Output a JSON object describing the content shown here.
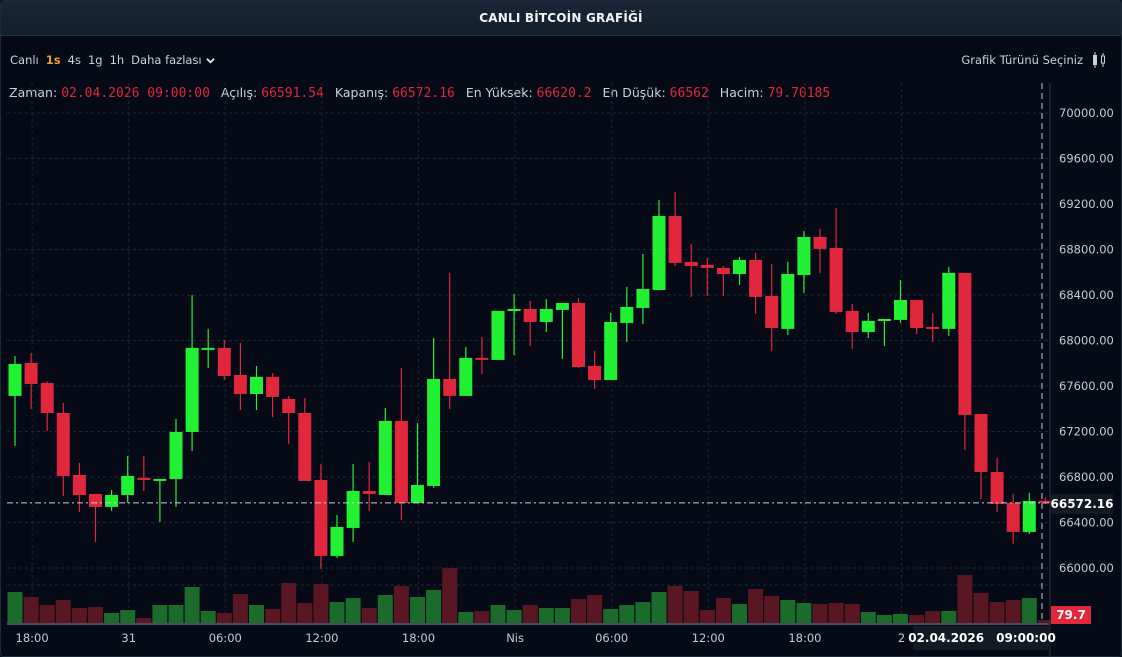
{
  "window": {
    "title": "CANLI BİTCOİN GRAFİĞİ"
  },
  "toolbar": {
    "live_label": "Canlı",
    "timeframes": [
      {
        "label": "1s",
        "active": true
      },
      {
        "label": "4s",
        "active": false
      },
      {
        "label": "1g",
        "active": false
      },
      {
        "label": "1h",
        "active": false
      }
    ],
    "more_label": "Daha fazlası",
    "chart_type_label": "Grafik Türünü Seçiniz",
    "chart_type_icon": "candlestick-icon"
  },
  "legend": {
    "time_label": "Zaman:",
    "time_value": "02.04.2026 09:00:00",
    "open_label": "Açılış:",
    "open_value": "66591.54",
    "close_label": "Kapanış:",
    "close_value": "66572.16",
    "high_label": "En Yüksek:",
    "high_value": "66620.2",
    "low_label": "En Düşük:",
    "low_value": "66562",
    "volume_label": "Hacim:",
    "volume_value": "79.70185"
  },
  "crosshair": {
    "price_tag": "66572.16",
    "volume_tag": "79.7",
    "date_tag": "02.04.2026",
    "time_tag": "09:00:00"
  },
  "colors": {
    "up": "#22f032",
    "down": "#e0273b",
    "vol_up": "#1b6b2a",
    "vol_down": "#5a1723",
    "background": "#050a16",
    "grid": "#1d2735",
    "accent": "#f0a020"
  },
  "chart_data": {
    "type": "candlestick",
    "title": "CANLI BİTCOİN GRAFİĞİ",
    "xlabel": "",
    "ylabel": "",
    "ylim": [
      65800,
      70200
    ],
    "y_ticks": [
      "70000.00",
      "69600.00",
      "69200.00",
      "68800.00",
      "68400.00",
      "68000.00",
      "67600.00",
      "67200.00",
      "66800.00",
      "66400.00",
      "66000.00"
    ],
    "x_ticks": [
      {
        "label": "18:00",
        "index": 1
      },
      {
        "label": "31",
        "index": 7
      },
      {
        "label": "06:00",
        "index": 13
      },
      {
        "label": "12:00",
        "index": 19
      },
      {
        "label": "18:00",
        "index": 25
      },
      {
        "label": "Nis",
        "index": 31
      },
      {
        "label": "06:00",
        "index": 37
      },
      {
        "label": "12:00",
        "index": 43
      },
      {
        "label": "18:00",
        "index": 49
      },
      {
        "label": "2",
        "index": 55
      }
    ],
    "grid": true,
    "interval": "1h",
    "candles": [
      [
        67513,
        67864,
        67073,
        67794,
        31
      ],
      [
        67803,
        67891,
        67398,
        67618,
        26
      ],
      [
        67627,
        67640,
        67205,
        67363,
        18
      ],
      [
        67363,
        67451,
        66633,
        66809,
        23
      ],
      [
        66818,
        66924,
        66493,
        66642,
        15
      ],
      [
        66651,
        66651,
        66229,
        66537,
        16
      ],
      [
        66537,
        66686,
        66502,
        66642,
        10
      ],
      [
        66642,
        66985,
        66572,
        66809,
        13
      ],
      [
        66792,
        66985,
        66677,
        66774,
        5
      ],
      [
        66774,
        66783,
        66405,
        66783,
        18
      ],
      [
        66783,
        67310,
        66537,
        67196,
        18
      ],
      [
        67196,
        68400,
        67029,
        67935,
        36
      ],
      [
        67926,
        68102,
        67759,
        67935,
        12
      ],
      [
        67935,
        68005,
        67653,
        67688,
        10
      ],
      [
        67697,
        67978,
        67389,
        67530,
        29
      ],
      [
        67530,
        67776,
        67389,
        67680,
        18
      ],
      [
        67680,
        67715,
        67328,
        67504,
        14
      ],
      [
        67486,
        67513,
        67091,
        67363,
        40
      ],
      [
        67363,
        67495,
        66765,
        66765,
        20
      ],
      [
        66774,
        66915,
        65992,
        66106,
        39
      ],
      [
        66106,
        66466,
        66088,
        66361,
        21
      ],
      [
        66352,
        66915,
        66229,
        66677,
        25
      ],
      [
        66677,
        66932,
        66502,
        66651,
        15
      ],
      [
        66642,
        67407,
        66642,
        67293,
        28
      ],
      [
        67293,
        67759,
        66422,
        66572,
        37
      ],
      [
        66572,
        67275,
        66572,
        66730,
        26
      ],
      [
        66721,
        68022,
        66704,
        67662,
        33
      ],
      [
        67662,
        68594,
        67398,
        67513,
        55
      ],
      [
        67513,
        67943,
        67513,
        67847,
        11
      ],
      [
        67847,
        68031,
        67706,
        67838,
        12
      ],
      [
        67829,
        68260,
        67829,
        68260,
        18
      ],
      [
        68260,
        68409,
        67873,
        68277,
        13
      ],
      [
        68277,
        68348,
        67952,
        68163,
        18
      ],
      [
        68163,
        68365,
        68075,
        68277,
        15
      ],
      [
        68269,
        68330,
        67838,
        68330,
        15
      ],
      [
        68330,
        68374,
        67759,
        67767,
        24
      ],
      [
        67776,
        67908,
        67574,
        67653,
        28
      ],
      [
        67653,
        68242,
        67653,
        68163,
        14
      ],
      [
        68154,
        68471,
        67987,
        68295,
        18
      ],
      [
        68286,
        68761,
        68145,
        68453,
        21
      ],
      [
        68444,
        69236,
        68444,
        69095,
        31
      ],
      [
        69095,
        69306,
        68655,
        68682,
        37
      ],
      [
        68691,
        68849,
        68383,
        68655,
        32
      ],
      [
        68664,
        68726,
        68392,
        68638,
        13
      ],
      [
        68638,
        68655,
        68392,
        68585,
        25
      ],
      [
        68585,
        68735,
        68488,
        68708,
        19
      ],
      [
        68708,
        68770,
        68233,
        68383,
        34
      ],
      [
        68392,
        68673,
        67908,
        68110,
        27
      ],
      [
        68102,
        68691,
        68049,
        68585,
        23
      ],
      [
        68576,
        68963,
        68418,
        68910,
        20
      ],
      [
        68910,
        68981,
        68594,
        68805,
        19
      ],
      [
        68814,
        69165,
        68233,
        68251,
        20
      ],
      [
        68260,
        68321,
        67926,
        68075,
        19
      ],
      [
        68075,
        68242,
        68022,
        68172,
        11
      ],
      [
        68172,
        68189,
        67952,
        68189,
        8
      ],
      [
        68181,
        68532,
        68154,
        68356,
        9
      ],
      [
        68356,
        68356,
        68058,
        68110,
        8
      ],
      [
        68119,
        68242,
        67987,
        68110,
        12
      ],
      [
        68102,
        68647,
        68040,
        68594,
        12
      ],
      [
        68594,
        68594,
        67038,
        67346,
        48
      ],
      [
        67354,
        67354,
        66607,
        66844,
        30
      ],
      [
        66844,
        66968,
        66493,
        66563,
        21
      ],
      [
        66572,
        66651,
        66211,
        66317,
        23
      ],
      [
        66317,
        66660,
        66299,
        66589,
        25
      ],
      [
        66591.54,
        66620.2,
        66562,
        66572.16,
        3
      ]
    ],
    "candle_fields": [
      "open",
      "high",
      "low",
      "close",
      "volume_px"
    ]
  }
}
